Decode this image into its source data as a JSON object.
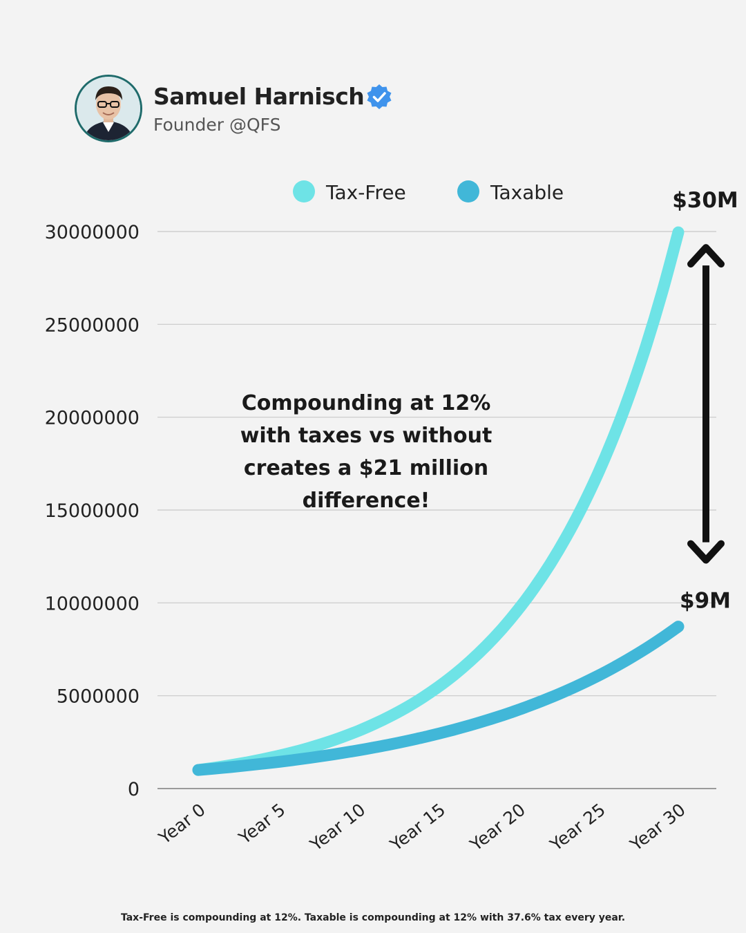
{
  "author": {
    "name": "Samuel Harnisch",
    "handle": "Founder @QFS",
    "avatar_icon": "person-photo",
    "verified_icon": "verified-badge-icon"
  },
  "colors": {
    "tax_free": "#6ee3e6",
    "taxable": "#41b7d8",
    "grid": "#c8c8c8",
    "arrow": "#111111"
  },
  "chart_data": {
    "type": "line",
    "x": [
      "Year 0",
      "Year 1",
      "Year 2",
      "Year 3",
      "Year 4",
      "Year 5",
      "Year 6",
      "Year 7",
      "Year 8",
      "Year 9",
      "Year 10",
      "Year 11",
      "Year 12",
      "Year 13",
      "Year 14",
      "Year 15",
      "Year 16",
      "Year 17",
      "Year 18",
      "Year 19",
      "Year 20",
      "Year 21",
      "Year 22",
      "Year 23",
      "Year 24",
      "Year 25",
      "Year 26",
      "Year 27",
      "Year 28",
      "Year 29",
      "Year 30"
    ],
    "tick_labels_x": [
      "Year 0",
      "Year 5",
      "Year 10",
      "Year 15",
      "Year 20",
      "Year 25",
      "Year 30"
    ],
    "tick_labels_y": [
      "0",
      "5000000",
      "10000000",
      "15000000",
      "20000000",
      "25000000",
      "30000000"
    ],
    "ylim": [
      0,
      30000000
    ],
    "grid": true,
    "legend_position": "top",
    "series": [
      {
        "name": "Tax-Free",
        "values": [
          1000000,
          1120000,
          1254400,
          1404928,
          1573519,
          1762342,
          1973823,
          2210681,
          2475963,
          2773079,
          3105848,
          3478550,
          3895976,
          4363493,
          4887112,
          5473566,
          6130394,
          6866041,
          7689966,
          8612762,
          9646293,
          10803848,
          12100310,
          13552347,
          15178629,
          17000064,
          19040072,
          21324881,
          23883866,
          26749930,
          29959922
        ]
      },
      {
        "name": "Taxable",
        "values": [
          1000000,
          1074880,
          1155367,
          1241882,
          1334875,
          1434830,
          1542271,
          1657757,
          1781891,
          1915320,
          2058740,
          2212900,
          2378604,
          2556716,
          2748166,
          2953951,
          3175146,
          3412905,
          3668465,
          3943162,
          4238428,
          4555805,
          4896947,
          5263635,
          5657781,
          6081441,
          6536824,
          7026307,
          7552443,
          8117976,
          8725856
        ]
      }
    ],
    "end_labels": [
      "$30M",
      "$9M"
    ]
  },
  "annotation": {
    "lines": [
      "Compounding at 12%",
      "with taxes vs without",
      "creates a $21 million",
      "difference!"
    ]
  },
  "footnote": "Tax-Free is compounding at 12%. Taxable is compounding at 12% with 37.6% tax every year."
}
